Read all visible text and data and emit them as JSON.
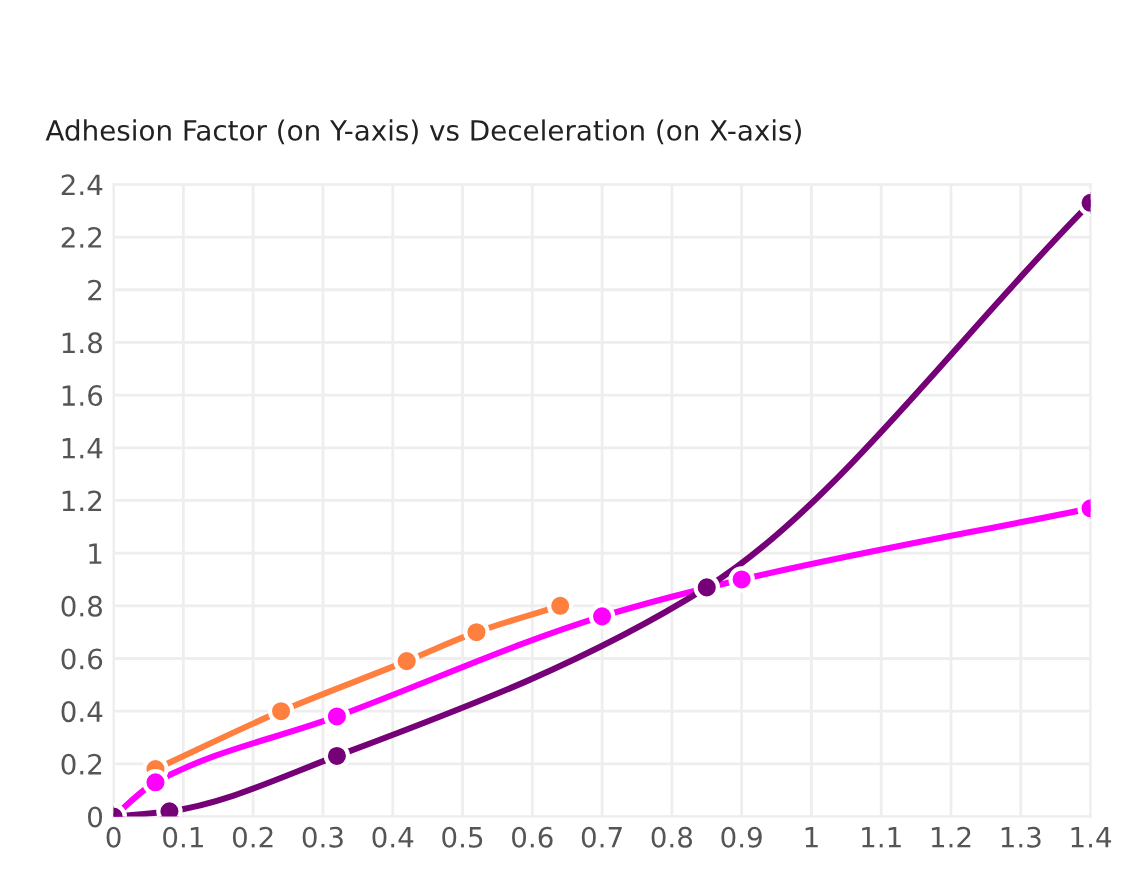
{
  "chart_data": {
    "type": "line",
    "title": "Adhesion Factor (on Y-axis) vs Deceleration (on X-axis)",
    "series": [
      {
        "color": "#ff7f3f",
        "x": [
          0.06,
          0.24,
          0.42,
          0.52,
          0.64
        ],
        "values": [
          0.18,
          0.4,
          0.59,
          0.7,
          0.8
        ]
      },
      {
        "color": "#ff00ff",
        "x": [
          0,
          0.06,
          0.32,
          0.7,
          0.9,
          1.4
        ],
        "values": [
          0,
          0.13,
          0.38,
          0.76,
          0.9,
          1.17
        ]
      },
      {
        "color": "#760078",
        "x": [
          0,
          0.08,
          0.32,
          0.85,
          1.4
        ],
        "values": [
          0,
          0.02,
          0.23,
          0.87,
          2.33
        ]
      }
    ],
    "xlim": [
      0,
      1.4
    ],
    "xticks": [
      0,
      0.1,
      0.2,
      0.3,
      0.4,
      0.5,
      0.6,
      0.7,
      0.8,
      0.9,
      1,
      1.1,
      1.2,
      1.3,
      1.4
    ],
    "ylim": [
      0,
      2.4
    ],
    "yticks": [
      0,
      0.2,
      0.4,
      0.6,
      0.8,
      1,
      1.2,
      1.4,
      1.6,
      1.8,
      2,
      2.2,
      2.4
    ],
    "grid": true,
    "marker": "circle",
    "line_style": "solid"
  }
}
